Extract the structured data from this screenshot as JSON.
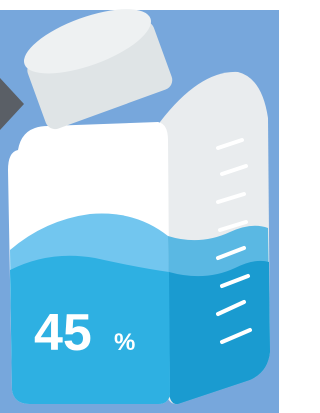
{
  "label": {
    "value": "45",
    "unit": "%"
  }
}
